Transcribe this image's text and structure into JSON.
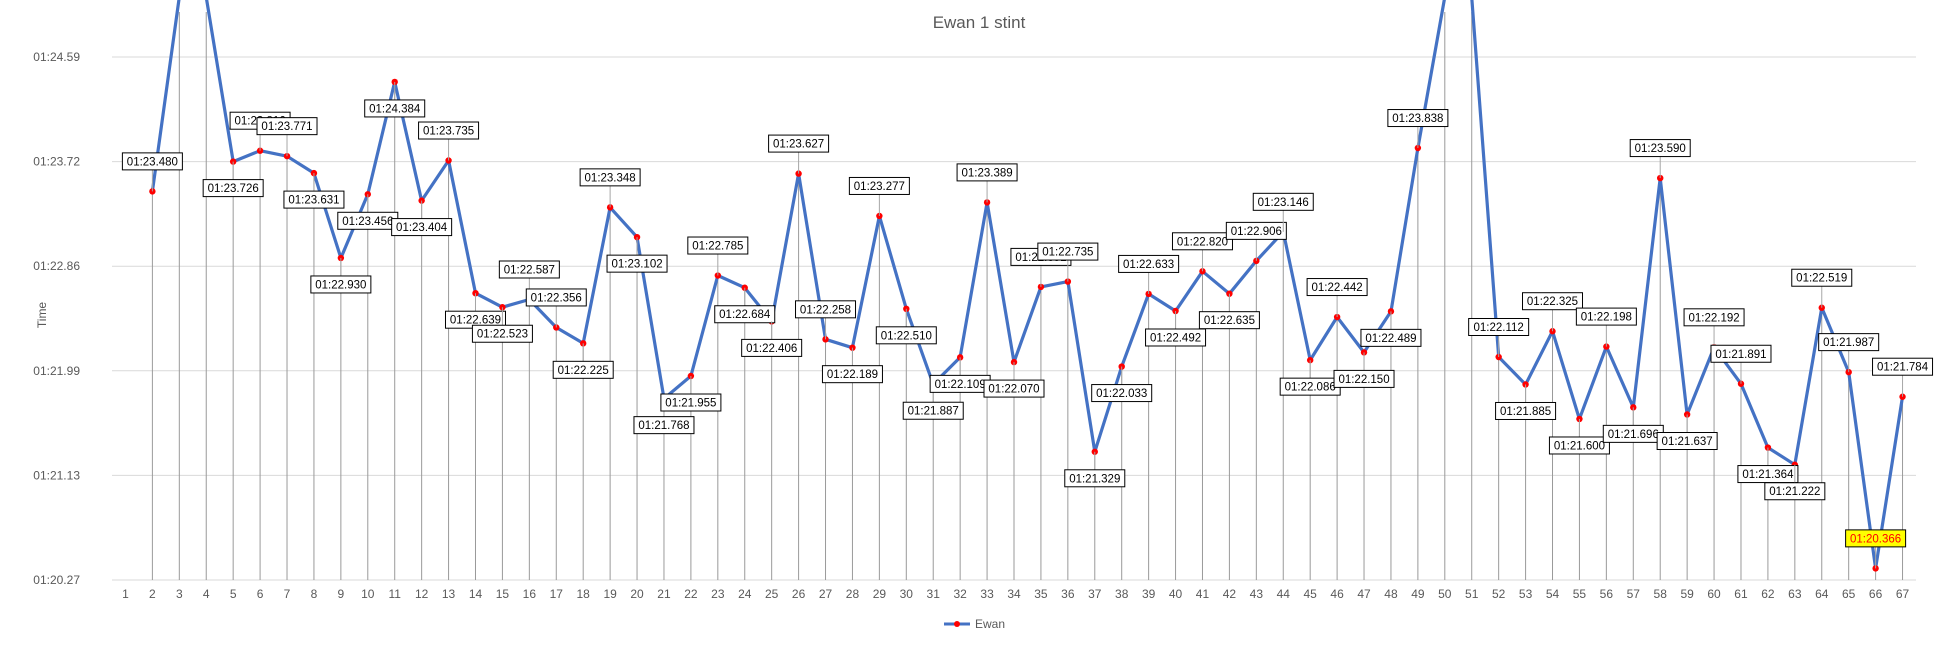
{
  "chart_data": {
    "type": "line",
    "title": "Ewan 1 stint",
    "xlabel": "",
    "ylabel": "Time",
    "y_ticks": [
      "01:20.27",
      "01:21.13",
      "01:21.99",
      "01:22.86",
      "01:23.72",
      "01:24.59"
    ],
    "ylim_seconds": [
      80.27,
      84.59
    ],
    "x_ticks": [
      1,
      2,
      3,
      4,
      5,
      6,
      7,
      8,
      9,
      10,
      11,
      12,
      13,
      14,
      15,
      16,
      17,
      18,
      19,
      20,
      21,
      22,
      23,
      24,
      25,
      26,
      27,
      28,
      29,
      30,
      31,
      32,
      33,
      34,
      35,
      36,
      37,
      38,
      39,
      40,
      41,
      42,
      43,
      44,
      45,
      46,
      47,
      48,
      49,
      50,
      51,
      52,
      53,
      54,
      55,
      56,
      57,
      58,
      59,
      60,
      61,
      62,
      63,
      64,
      65,
      66,
      67
    ],
    "grid": "horizontal",
    "legend": "bottom",
    "series": [
      {
        "name": "Ewan",
        "color": "#4472c4",
        "marker_color": "#ff0000",
        "points": [
          {
            "x": 2,
            "y": 83.48,
            "label": "01:23.480"
          },
          {
            "x": 5,
            "y": 83.726,
            "label": "01:23.726"
          },
          {
            "x": 6,
            "y": 83.816,
            "label": "01:23.816"
          },
          {
            "x": 7,
            "y": 83.771,
            "label": "01:23.771"
          },
          {
            "x": 8,
            "y": 83.631,
            "label": "01:23.631"
          },
          {
            "x": 9,
            "y": 82.93,
            "label": "01:22.930"
          },
          {
            "x": 10,
            "y": 83.456,
            "label": "01:23.456"
          },
          {
            "x": 11,
            "y": 84.384,
            "label": "01:24.384"
          },
          {
            "x": 12,
            "y": 83.404,
            "label": "01:23.404"
          },
          {
            "x": 13,
            "y": 83.735,
            "label": "01:23.735"
          },
          {
            "x": 14,
            "y": 82.639,
            "label": "01:22.639"
          },
          {
            "x": 15,
            "y": 82.523,
            "label": "01:22.523"
          },
          {
            "x": 16,
            "y": 82.587,
            "label": "01:22.587"
          },
          {
            "x": 17,
            "y": 82.356,
            "label": "01:22.356"
          },
          {
            "x": 18,
            "y": 82.225,
            "label": "01:22.225"
          },
          {
            "x": 19,
            "y": 83.348,
            "label": "01:23.348"
          },
          {
            "x": 20,
            "y": 83.102,
            "label": "01:23.102"
          },
          {
            "x": 21,
            "y": 81.768,
            "label": "01:21.768"
          },
          {
            "x": 22,
            "y": 81.955,
            "label": "01:21.955"
          },
          {
            "x": 23,
            "y": 82.785,
            "label": "01:22.785"
          },
          {
            "x": 24,
            "y": 82.684,
            "label": "01:22.684"
          },
          {
            "x": 25,
            "y": 82.406,
            "label": "01:22.406"
          },
          {
            "x": 26,
            "y": 83.627,
            "label": "01:23.627"
          },
          {
            "x": 27,
            "y": 82.258,
            "label": "01:22.258"
          },
          {
            "x": 28,
            "y": 82.189,
            "label": "01:22.189"
          },
          {
            "x": 29,
            "y": 83.277,
            "label": "01:23.277"
          },
          {
            "x": 30,
            "y": 82.51,
            "label": "01:22.510"
          },
          {
            "x": 31,
            "y": 81.887,
            "label": "01:21.887"
          },
          {
            "x": 32,
            "y": 82.109,
            "label": "01:22.109"
          },
          {
            "x": 33,
            "y": 83.389,
            "label": "01:23.389"
          },
          {
            "x": 34,
            "y": 82.07,
            "label": "01:22.070"
          },
          {
            "x": 35,
            "y": 82.691,
            "label": "01:22.691"
          },
          {
            "x": 36,
            "y": 82.735,
            "label": "01:22.735"
          },
          {
            "x": 37,
            "y": 81.329,
            "label": "01:21.329"
          },
          {
            "x": 38,
            "y": 82.033,
            "label": "01:22.033"
          },
          {
            "x": 39,
            "y": 82.633,
            "label": "01:22.633"
          },
          {
            "x": 40,
            "y": 82.492,
            "label": "01:22.492"
          },
          {
            "x": 41,
            "y": 82.82,
            "label": "01:22.820"
          },
          {
            "x": 42,
            "y": 82.635,
            "label": "01:22.635"
          },
          {
            "x": 43,
            "y": 82.906,
            "label": "01:22.906"
          },
          {
            "x": 44,
            "y": 83.146,
            "label": "01:23.146"
          },
          {
            "x": 45,
            "y": 82.086,
            "label": "01:22.086"
          },
          {
            "x": 46,
            "y": 82.442,
            "label": "01:22.442"
          },
          {
            "x": 47,
            "y": 82.15,
            "label": "01:22.150"
          },
          {
            "x": 48,
            "y": 82.489,
            "label": "01:22.489"
          },
          {
            "x": 49,
            "y": 83.838,
            "label": "01:23.838"
          },
          {
            "x": 52,
            "y": 82.112,
            "label": "01:22.112"
          },
          {
            "x": 53,
            "y": 81.885,
            "label": "01:21.885"
          },
          {
            "x": 54,
            "y": 82.325,
            "label": "01:22.325"
          },
          {
            "x": 55,
            "y": 81.6,
            "label": "01:21.600"
          },
          {
            "x": 56,
            "y": 82.198,
            "label": "01:22.198"
          },
          {
            "x": 57,
            "y": 81.696,
            "label": "01:21.696"
          },
          {
            "x": 58,
            "y": 83.59,
            "label": "01:23.590"
          },
          {
            "x": 59,
            "y": 81.637,
            "label": "01:21.637"
          },
          {
            "x": 60,
            "y": 82.192,
            "label": "01:22.192"
          },
          {
            "x": 61,
            "y": 81.891,
            "label": "01:21.891"
          },
          {
            "x": 62,
            "y": 81.364,
            "label": "01:21.364"
          },
          {
            "x": 63,
            "y": 81.222,
            "label": "01:21.222"
          },
          {
            "x": 64,
            "y": 82.519,
            "label": "01:22.519"
          },
          {
            "x": 65,
            "y": 81.987,
            "label": "01:21.987"
          },
          {
            "x": 66,
            "y": 80.366,
            "label": "01:20.366",
            "highlight": true
          },
          {
            "x": 67,
            "y": 81.784,
            "label": "01:21.784"
          }
        ],
        "off_chart_segments": [
          [
            2,
            3
          ],
          [
            4,
            5
          ],
          [
            49,
            50
          ],
          [
            51,
            52
          ]
        ]
      }
    ]
  }
}
